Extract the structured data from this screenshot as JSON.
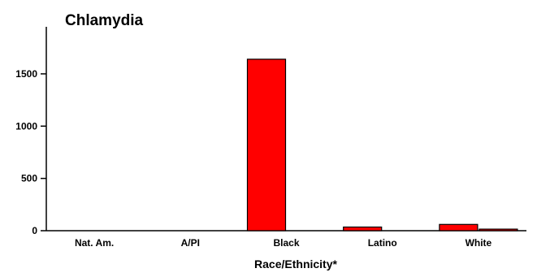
{
  "chart_data": {
    "type": "bar",
    "title": "Chlamydia",
    "xlabel": "Race/Ethnicity*",
    "ylabel": "",
    "categories": [
      "Nat. Am.",
      "A/PI",
      "Black",
      "Latino",
      "White"
    ],
    "series": [
      {
        "values": [
          0,
          0,
          1640,
          35,
          60
        ],
        "color": "#ff0000"
      },
      {
        "values": [
          0,
          0,
          0,
          0,
          15
        ],
        "color": "#ff0000"
      }
    ],
    "yticks": [
      0,
      500,
      1000,
      1500
    ],
    "ylim": [
      0,
      1950
    ],
    "grid": false,
    "legend": "none"
  }
}
